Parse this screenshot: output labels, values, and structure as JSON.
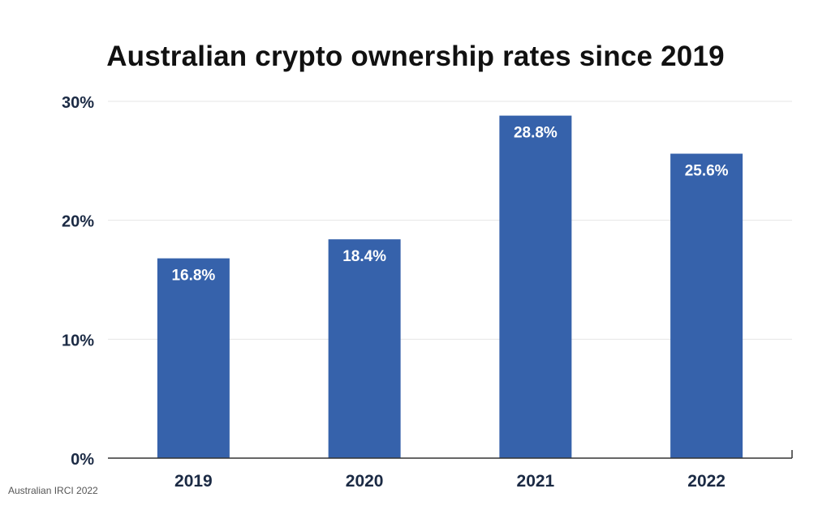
{
  "chart_data": {
    "type": "bar",
    "title": "Australian crypto ownership rates since 2019",
    "categories": [
      "2019",
      "2020",
      "2021",
      "2022"
    ],
    "values": [
      16.8,
      18.4,
      28.8,
      25.6
    ],
    "data_labels": [
      "16.8%",
      "18.4%",
      "28.8%",
      "25.6%"
    ],
    "xlabel": "",
    "ylabel": "",
    "ylim": [
      0,
      30
    ],
    "yticks": [
      0,
      10,
      20,
      30
    ],
    "ytick_labels": [
      "0%",
      "10%",
      "20%",
      "30%"
    ],
    "grid": true,
    "legend": "none",
    "source": "Australian IRCI 2022",
    "colors": {
      "bar": "#3662ab",
      "grid": "#e6e6e6",
      "axis": "#333333",
      "tick_label": "#1b2a44",
      "data_label": "#ffffff"
    }
  }
}
